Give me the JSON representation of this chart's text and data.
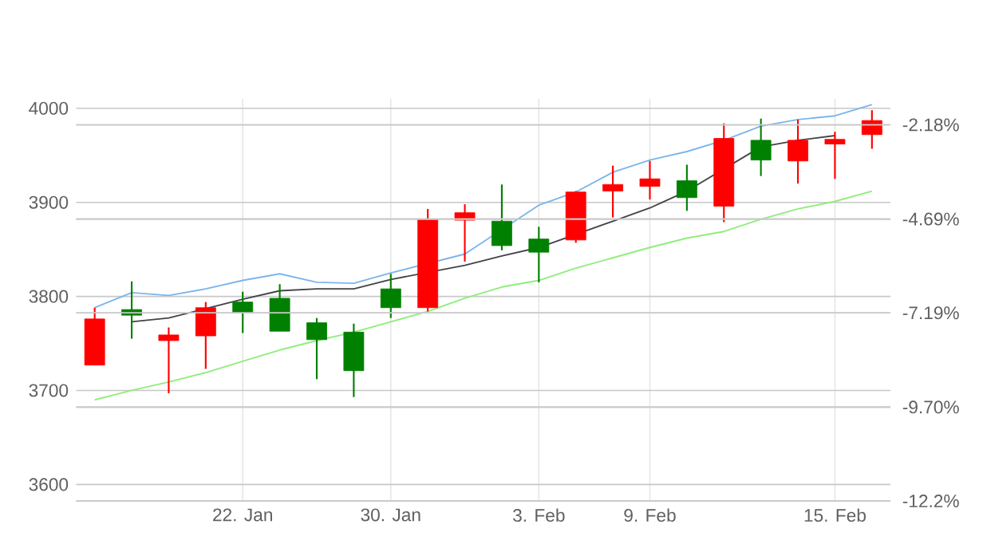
{
  "chart_data": {
    "type": "candlestick",
    "categories": [
      null,
      null,
      null,
      null,
      "22. Jan",
      null,
      null,
      null,
      "30. Jan",
      null,
      null,
      null,
      "3. Feb",
      null,
      null,
      "9. Feb",
      null,
      null,
      null,
      null,
      "15. Feb",
      null
    ],
    "ohlc": [
      [
        3727,
        3788,
        3727,
        3776
      ],
      [
        3786,
        3816,
        3755,
        3780
      ],
      [
        3753,
        3767,
        3697,
        3759
      ],
      [
        3758,
        3794,
        3723,
        3788
      ],
      [
        3794,
        3805,
        3761,
        3783
      ],
      [
        3798,
        3813,
        3763,
        3763
      ],
      [
        3772,
        3777,
        3712,
        3754
      ],
      [
        3762,
        3771,
        3693,
        3721
      ],
      [
        3808,
        3824,
        3777,
        3788
      ],
      [
        3788,
        3893,
        3784,
        3882
      ],
      [
        3881,
        3898,
        3837,
        3889
      ],
      [
        3880,
        3919,
        3849,
        3854
      ],
      [
        3861,
        3874,
        3815,
        3847
      ],
      [
        3860,
        3912,
        3857,
        3911
      ],
      [
        3912,
        3939,
        3884,
        3919
      ],
      [
        3917,
        3944,
        3903,
        3925
      ],
      [
        3923,
        3940,
        3891,
        3905
      ],
      [
        3896,
        3984,
        3879,
        3968
      ],
      [
        3966,
        3989,
        3928,
        3945
      ],
      [
        3944,
        3988,
        3920,
        3966
      ],
      [
        3962,
        3975,
        3925,
        3967
      ],
      [
        3972,
        3998,
        3957,
        3987
      ]
    ],
    "colors": [
      "#ff0000",
      "#008000",
      "#ff0000",
      "#ff0000",
      "#008000",
      "#008000",
      "#008000",
      "#008000",
      "#008000",
      "#ff0000",
      "#ff0000",
      "#008000",
      "#008000",
      "#ff0000",
      "#ff0000",
      "#ff0000",
      "#008000",
      "#ff0000",
      "#008000",
      "#ff0000",
      "#ff0000",
      "#ff0000"
    ],
    "series": [
      {
        "type": "line",
        "color": "#7cb5ec",
        "values": [
          3788,
          3804,
          3801,
          3808,
          3817,
          3824,
          3815,
          3814,
          3825,
          null,
          3845,
          null,
          3897,
          3911,
          3932,
          3945,
          3954,
          3966,
          3981,
          3988,
          3992,
          4004
        ]
      },
      {
        "type": "line",
        "color": "#434348",
        "values": [
          null,
          3773,
          3777,
          3787,
          3797,
          3806,
          3808,
          3808,
          3818,
          null,
          3833,
          3843,
          3852,
          null,
          3880,
          3894,
          3912,
          null,
          3959,
          3966,
          3971,
          null
        ]
      },
      {
        "type": "line",
        "color": "#90ed7d",
        "values": [
          3690,
          3700,
          3709,
          3719,
          3731,
          3743,
          3753,
          3762,
          3773,
          3784,
          3798,
          3810,
          3817,
          3830,
          3841,
          3852,
          3862,
          3869,
          3882,
          3893,
          3901,
          3912
        ]
      }
    ],
    "ylim": [
      3582.5,
      4010
    ],
    "yticks": [
      3600,
      3700,
      3800,
      3900,
      4000
    ],
    "y2lim": [
      -12.2,
      -1.49
    ],
    "y2ticks": [
      {
        "value": -2.18,
        "label": "-2.18%"
      },
      {
        "value": -4.69,
        "label": "-4.69%"
      },
      {
        "value": -7.19,
        "label": "-7.19%"
      },
      {
        "value": -9.7,
        "label": "-9.70%"
      },
      {
        "value": -12.2,
        "label": "-12.2%"
      }
    ],
    "grid": true
  }
}
